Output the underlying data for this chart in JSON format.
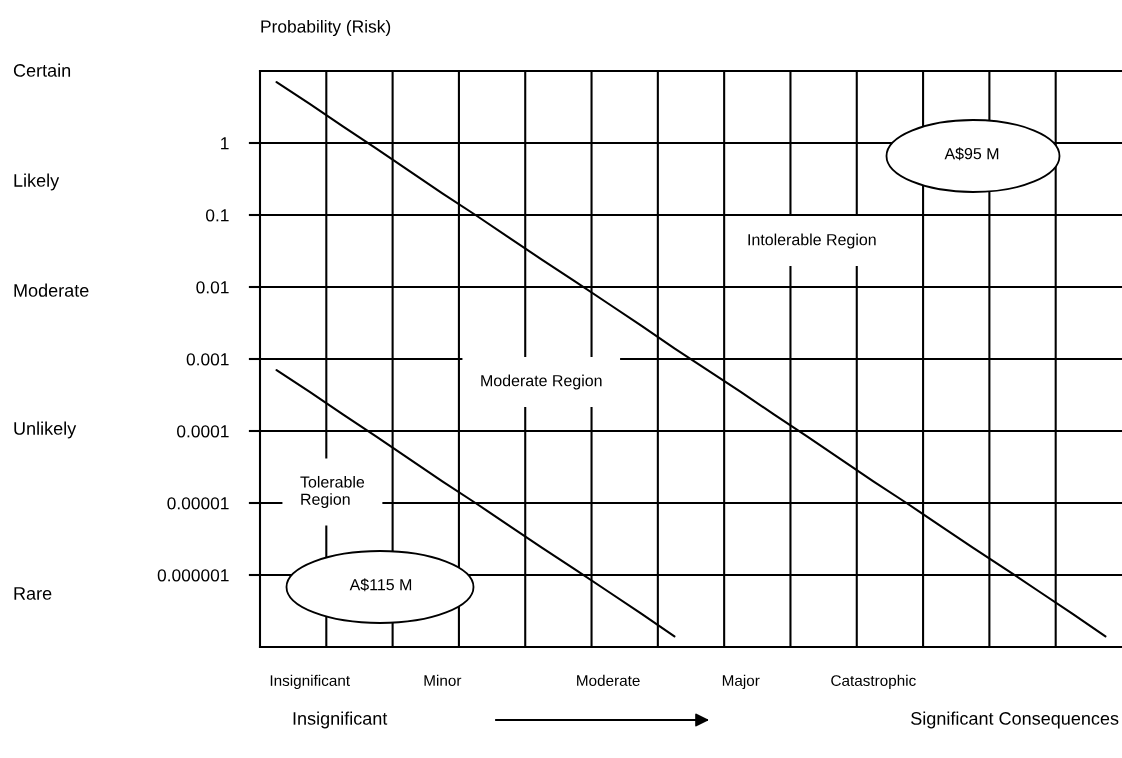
{
  "chart_data": {
    "type": "line",
    "ylabel": "Probability (Risk)",
    "log": "y",
    "ylim": [
      1e-07,
      10
    ],
    "categories": [
      null,
      "Insignificant",
      null,
      null,
      null,
      "Minor",
      null,
      null,
      null,
      null,
      "Moderate",
      null,
      null,
      null,
      "Major",
      null,
      null,
      null,
      "Catastrophic",
      null,
      null,
      null,
      null,
      null,
      null,
      null
    ],
    "yticks": [
      {
        "value": 1,
        "label": "1"
      },
      {
        "value": 0.1,
        "label": "0.1"
      },
      {
        "value": 0.01,
        "label": "0.01"
      },
      {
        "value": 0.001,
        "label": "0.001"
      },
      {
        "value": 0.0001,
        "label": "0.0001"
      },
      {
        "value": 1e-05,
        "label": "0.00001"
      },
      {
        "value": 1e-06,
        "label": "0.000001"
      }
    ],
    "grid": true,
    "marker": "none",
    "line_style": "solid",
    "series": [
      {
        "color": "#000000",
        "values": [
          7.0,
          3.5,
          1.7,
          0.84,
          0.41,
          0.2,
          0.1,
          0.049,
          0.024,
          0.012,
          0.0059,
          0.0029,
          0.0014,
          0.0007,
          0.00035,
          0.00017,
          8.4e-05,
          4.1e-05,
          2e-05,
          1e-05,
          4.9e-06,
          2.4e-06,
          1.2e-06,
          5.9e-07,
          2.9e-07,
          1.4e-07
        ]
      },
      {
        "color": "#000000",
        "values": [
          0.0007,
          0.00035,
          0.00017,
          8.4e-05,
          4.1e-05,
          2e-05,
          1e-05,
          4.9e-06,
          2.4e-06,
          1.2e-06,
          5.9e-07,
          2.9e-07,
          1.4e-07,
          null,
          null,
          null,
          null,
          null,
          null,
          null,
          null,
          null,
          null,
          null,
          null,
          null
        ]
      }
    ],
    "annotations": [
      "Certain",
      "Likely",
      "Moderate",
      "Unlikely",
      "Rare",
      "Insignificant",
      "Significant Consequences",
      "Intolerable Region",
      "Moderate Region",
      "Tolerable\nRegion",
      "A$95 M",
      "A$115 M"
    ]
  }
}
